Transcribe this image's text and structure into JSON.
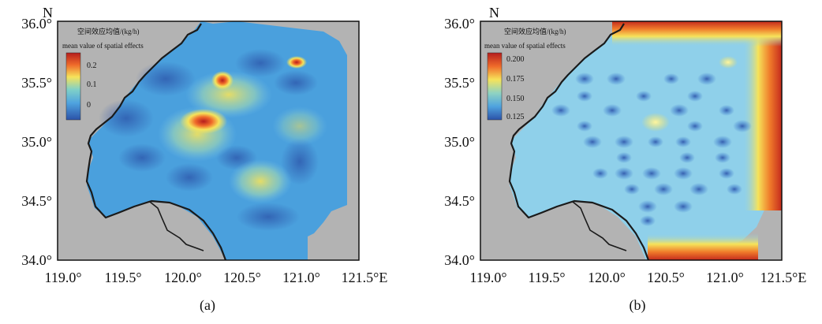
{
  "panels": [
    {
      "id": "a",
      "caption": "(a)",
      "north_label": "N",
      "legend": {
        "title_cn": "空间效应均值/(kg/h)",
        "title_en": "mean value of spatial effects",
        "ticks": [
          "0.2",
          "0.1",
          "0"
        ]
      },
      "y_ticks": [
        "36.0°",
        "35.5°",
        "35.0°",
        "34.5°",
        "34.0°"
      ],
      "x_ticks": [
        "119.0°",
        "119.5°",
        "120.0°",
        "120.5°",
        "121.0°",
        "121.5°E"
      ]
    },
    {
      "id": "b",
      "caption": "(b)",
      "north_label": "N",
      "legend": {
        "title_cn": "空间效应均值/(kg/h)",
        "title_en": "mean value of spatial effects",
        "ticks": [
          "0.200",
          "0.175",
          "0.150",
          "0.125"
        ]
      },
      "y_ticks": [
        "36.0°",
        "35.5°",
        "35.0°",
        "34.5°",
        "34.0°"
      ],
      "x_ticks": [
        "119.0°",
        "119.5°",
        "120.0°",
        "120.5°",
        "121.0°",
        "121.5°E"
      ]
    }
  ],
  "colors": {
    "land": "#b3b3b3",
    "coast": "#1a1a1a",
    "sea_low": "#2f5fb0",
    "sea_mid": "#4fa8e0",
    "sea_light": "#7ec8ea",
    "yellow": "#f3e25a",
    "orange": "#f08a2c",
    "red": "#b51d1d"
  }
}
